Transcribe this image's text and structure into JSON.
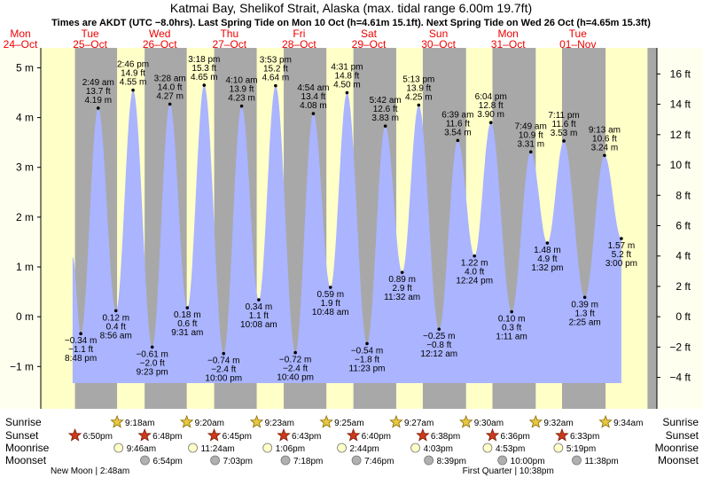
{
  "chart_data": {
    "type": "area",
    "title": "Katmai Bay, Shelikof Strait, Alaska (max. tidal range 6.00m 19.7ft)",
    "subtitle": "Times are AKDT (UTC −8.0hrs). Last Spring Tide on Mon 10 Oct (h=4.61m 15.1ft). Next Spring Tide on Wed 26 Oct (h=4.65m 15.3ft)",
    "days": [
      {
        "dow": "Mon",
        "date": "24–Oct"
      },
      {
        "dow": "Tue",
        "date": "25–Oct"
      },
      {
        "dow": "Wed",
        "date": "26–Oct"
      },
      {
        "dow": "Thu",
        "date": "27–Oct"
      },
      {
        "dow": "Fri",
        "date": "28–Oct"
      },
      {
        "dow": "Sat",
        "date": "29–Oct"
      },
      {
        "dow": "Sun",
        "date": "30–Oct"
      },
      {
        "dow": "Mon",
        "date": "31–Oct"
      },
      {
        "dow": "Tue",
        "date": "01–Nov"
      }
    ],
    "left_axis": {
      "unit": "m",
      "ticks": [
        "5 m",
        "4 m",
        "3 m",
        "2 m",
        "1 m",
        "0 m",
        "−1 m"
      ],
      "tick_values": [
        5,
        4,
        3,
        2,
        1,
        0,
        -1
      ]
    },
    "right_axis": {
      "unit": "ft",
      "ticks": [
        "16 ft",
        "14 ft",
        "12 ft",
        "10 ft",
        "8 ft",
        "6 ft",
        "4 ft",
        "2 ft",
        "0 ft",
        "−2 ft",
        "−4 ft"
      ],
      "tick_values": [
        16,
        14,
        12,
        10,
        8,
        6,
        4,
        2,
        0,
        -2,
        -4
      ]
    },
    "ylim_m": [
      -1.85,
      5.4
    ],
    "x_range_hours": [
      0,
      216
    ],
    "tides": [
      {
        "t": 20.8,
        "m": -0.34,
        "time": "8:48 pm",
        "h_m": "−0.34 m",
        "h_ft": "−1.1 ft",
        "kind": "low"
      },
      {
        "t": 26.8,
        "m": 4.19,
        "time": "2:49 am",
        "h_m": "4.19 m",
        "h_ft": "13.7 ft",
        "kind": "high"
      },
      {
        "t": 32.9,
        "m": 0.12,
        "time": "8:56 am",
        "h_m": "0.12 m",
        "h_ft": "0.4 ft",
        "kind": "low"
      },
      {
        "t": 38.8,
        "m": 4.55,
        "time": "2:46 pm",
        "h_m": "4.55 m",
        "h_ft": "14.9 ft",
        "kind": "high"
      },
      {
        "t": 45.4,
        "m": -0.61,
        "time": "9:23 pm",
        "h_m": "−0.61 m",
        "h_ft": "−2.0 ft",
        "kind": "low"
      },
      {
        "t": 51.5,
        "m": 4.27,
        "time": "3:28 am",
        "h_m": "4.27 m",
        "h_ft": "14.0 ft",
        "kind": "high"
      },
      {
        "t": 57.5,
        "m": 0.18,
        "time": "9:31 am",
        "h_m": "0.18 m",
        "h_ft": "0.6 ft",
        "kind": "low"
      },
      {
        "t": 63.3,
        "m": 4.65,
        "time": "3:18 pm",
        "h_m": "4.65 m",
        "h_ft": "15.3 ft",
        "kind": "high"
      },
      {
        "t": 70.0,
        "m": -0.74,
        "time": "10:00 pm",
        "h_m": "−0.74 m",
        "h_ft": "−2.4 ft",
        "kind": "low"
      },
      {
        "t": 76.2,
        "m": 4.23,
        "time": "4:10 am",
        "h_m": "4.23 m",
        "h_ft": "13.9 ft",
        "kind": "high"
      },
      {
        "t": 82.1,
        "m": 0.34,
        "time": "10:08 am",
        "h_m": "0.34 m",
        "h_ft": "1.1 ft",
        "kind": "low"
      },
      {
        "t": 87.9,
        "m": 4.64,
        "time": "3:53 pm",
        "h_m": "4.64 m",
        "h_ft": "15.2 ft",
        "kind": "high"
      },
      {
        "t": 94.7,
        "m": -0.72,
        "time": "10:40 pm",
        "h_m": "−0.72 m",
        "h_ft": "−2.4 ft",
        "kind": "low"
      },
      {
        "t": 100.9,
        "m": 4.08,
        "time": "4:54 am",
        "h_m": "4.08 m",
        "h_ft": "13.4 ft",
        "kind": "high"
      },
      {
        "t": 106.8,
        "m": 0.59,
        "time": "10:48 am",
        "h_m": "0.59 m",
        "h_ft": "1.9 ft",
        "kind": "low"
      },
      {
        "t": 112.5,
        "m": 4.5,
        "time": "4:31 pm",
        "h_m": "4.50 m",
        "h_ft": "14.8 ft",
        "kind": "high"
      },
      {
        "t": 119.4,
        "m": -0.54,
        "time": "11:23 pm",
        "h_m": "−0.54 m",
        "h_ft": "−1.8 ft",
        "kind": "low"
      },
      {
        "t": 125.7,
        "m": 3.83,
        "time": "5:42 am",
        "h_m": "3.83 m",
        "h_ft": "12.6 ft",
        "kind": "high"
      },
      {
        "t": 131.5,
        "m": 0.89,
        "time": "11:32 am",
        "h_m": "0.89 m",
        "h_ft": "2.9 ft",
        "kind": "low"
      },
      {
        "t": 137.2,
        "m": 4.25,
        "time": "5:13 pm",
        "h_m": "4.25 m",
        "h_ft": "13.9 ft",
        "kind": "high"
      },
      {
        "t": 144.2,
        "m": -0.25,
        "time": "12:12 am",
        "h_m": "−0.25 m",
        "h_ft": "−0.8 ft",
        "kind": "low"
      },
      {
        "t": 150.65,
        "m": 3.54,
        "time": "6:39 am",
        "h_m": "3.54 m",
        "h_ft": "11.6 ft",
        "kind": "high"
      },
      {
        "t": 156.4,
        "m": 1.22,
        "time": "12:24 pm",
        "h_m": "1.22 m",
        "h_ft": "4.0 ft",
        "kind": "low"
      },
      {
        "t": 162.05,
        "m": 3.9,
        "time": "6:04 pm",
        "h_m": "3.90 m",
        "h_ft": "12.8 ft",
        "kind": "high"
      },
      {
        "t": 169.2,
        "m": 0.1,
        "time": "1:11 am",
        "h_m": "0.10 m",
        "h_ft": "0.3 ft",
        "kind": "low"
      },
      {
        "t": 175.8,
        "m": 3.31,
        "time": "7:49 am",
        "h_m": "3.31 m",
        "h_ft": "10.9 ft",
        "kind": "high"
      },
      {
        "t": 181.5,
        "m": 1.48,
        "time": "1:32 pm",
        "h_m": "1.48 m",
        "h_ft": "4.9 ft",
        "kind": "low"
      },
      {
        "t": 187.2,
        "m": 3.53,
        "time": "7:11 pm",
        "h_m": "3.53 m",
        "h_ft": "11.6 ft",
        "kind": "high"
      },
      {
        "t": 194.4,
        "m": 0.39,
        "time": "2:25 am",
        "h_m": "0.39 m",
        "h_ft": "1.3 ft",
        "kind": "low"
      },
      {
        "t": 201.2,
        "m": 3.24,
        "time": "9:13 am",
        "h_m": "3.24 m",
        "h_ft": "10.6 ft",
        "kind": "high"
      },
      {
        "t": 207.0,
        "m": 1.57,
        "time": "3:00 pm",
        "h_m": "1.57 m",
        "h_ft": "5.2 ft",
        "kind": "low"
      }
    ],
    "curve_start": {
      "t": 18.0,
      "m": 1.2
    },
    "astro": {
      "row_labels": [
        "Sunrise",
        "Sunset",
        "Moonrise",
        "Moonset"
      ],
      "sunrise": [
        {
          "t": 33.3,
          "time": "9:18am"
        },
        {
          "t": 57.3,
          "time": "9:20am"
        },
        {
          "t": 81.4,
          "time": "9:23am"
        },
        {
          "t": 105.4,
          "time": "9:25am"
        },
        {
          "t": 129.45,
          "time": "9:27am"
        },
        {
          "t": 153.5,
          "time": "9:30am"
        },
        {
          "t": 177.5,
          "time": "9:32am"
        },
        {
          "t": 201.55,
          "time": "9:34am"
        }
      ],
      "sunset": [
        {
          "t": 18.8,
          "time": "6:50pm"
        },
        {
          "t": 42.8,
          "time": "6:48pm"
        },
        {
          "t": 66.75,
          "time": "6:45pm"
        },
        {
          "t": 90.7,
          "time": "6:43pm"
        },
        {
          "t": 114.7,
          "time": "6:40pm"
        },
        {
          "t": 138.6,
          "time": "6:38pm"
        },
        {
          "t": 162.6,
          "time": "6:36pm"
        },
        {
          "t": 186.55,
          "time": "6:33pm"
        }
      ],
      "moonrise": [
        {
          "t": 33.8,
          "time": "9:46am"
        },
        {
          "t": 59.4,
          "time": "11:24am"
        },
        {
          "t": 85.1,
          "time": "1:06pm"
        },
        {
          "t": 110.7,
          "time": "2:44pm"
        },
        {
          "t": 136.05,
          "time": "4:03pm"
        },
        {
          "t": 160.9,
          "time": "4:53pm"
        },
        {
          "t": 185.3,
          "time": "5:19pm"
        }
      ],
      "moonset": [
        {
          "t": 42.9,
          "time": "6:54pm"
        },
        {
          "t": 67.05,
          "time": "7:03pm"
        },
        {
          "t": 91.3,
          "time": "7:18pm"
        },
        {
          "t": 115.75,
          "time": "7:46pm"
        },
        {
          "t": 140.65,
          "time": "8:39pm"
        },
        {
          "t": 166.0,
          "time": "10:00pm"
        },
        {
          "t": 191.6,
          "time": "11:38pm"
        }
      ]
    },
    "moon_phases": [
      {
        "t": 24,
        "text": "New Moon | 2:48am"
      },
      {
        "t": 168,
        "text": "First Quarter | 10:38pm"
      }
    ],
    "colors": {
      "water": "#aab4ff",
      "day": "#ffffc8",
      "night": "#a8a8a8",
      "plot_bg": "#a8a8a8",
      "margin": "#fffff0",
      "day_label": "#ee0000",
      "text": "#000000",
      "sun_star": "#e8c840",
      "sun_star_stroke": "#8a6a00",
      "sunset_star": "#cc3a1a",
      "sunset_star_stroke": "#7a1d0a",
      "moonrise": "#ffffc8",
      "moonset": "#b0b0b0"
    }
  }
}
